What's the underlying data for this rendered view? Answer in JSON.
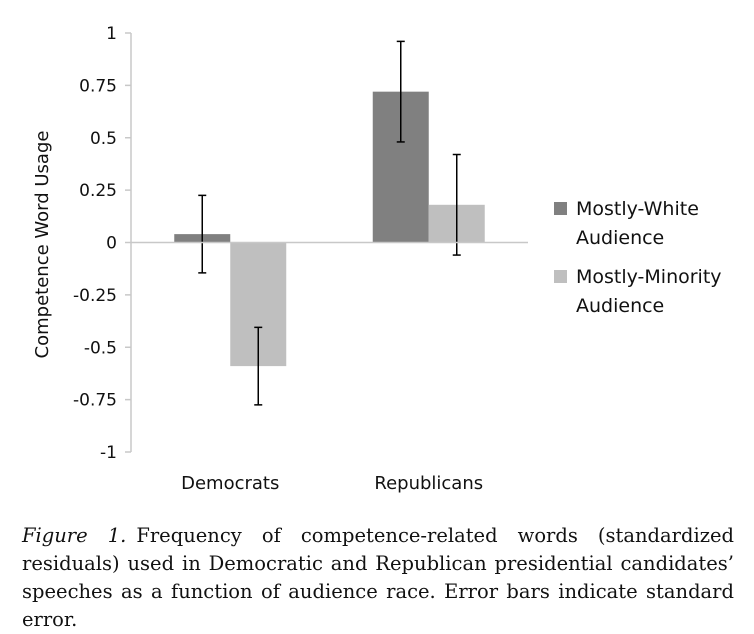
{
  "chart_data": {
    "type": "bar",
    "title": "",
    "xlabel": "",
    "ylabel": "Competence Word Usage",
    "ylim": [
      -1,
      1
    ],
    "yticks": [
      "1",
      "0.75",
      "0.5",
      "0.25",
      "0",
      "-0.25",
      "-0.5",
      "-0.75",
      "-1"
    ],
    "categories": [
      "Democrats",
      "Republicans"
    ],
    "series": [
      {
        "name": "Mostly-White Audience",
        "name_lines": [
          "Mostly-White",
          "Audience"
        ],
        "color": "#808080",
        "values": [
          0.04,
          0.72
        ],
        "errors": [
          0.185,
          0.24
        ]
      },
      {
        "name": "Mostly-Minority Audience",
        "name_lines": [
          "Mostly-Minority",
          "Audience"
        ],
        "color": "#bfbfbf",
        "values": [
          -0.59,
          0.18
        ],
        "errors": [
          0.185,
          0.24
        ]
      }
    ],
    "legend_position": "right",
    "grid": false
  },
  "caption": {
    "label": "Figure 1.",
    "text": "Frequency of competence-related words (standardized residuals) used in Democratic and Republican presidential candidates’ speeches as a function of audience race. Error bars indicate standard error."
  }
}
